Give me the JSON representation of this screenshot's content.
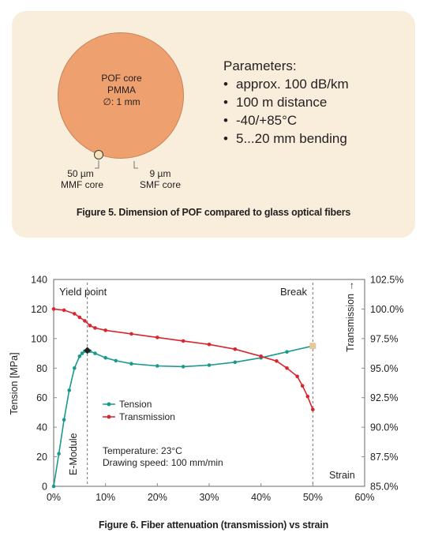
{
  "figure5": {
    "core": {
      "line1": "POF core",
      "line2": "PMMA",
      "line3": "∅: 1 mm"
    },
    "mmf": {
      "line1": "50 µm",
      "line2": "MMF core"
    },
    "smf": {
      "line1": "9 µm",
      "line2": "SMF core"
    },
    "parameters_title": "Parameters:",
    "parameters": [
      "approx. 100 dB/km",
      "100 m distance",
      "-40/+85°C",
      "5...20 mm bending"
    ],
    "caption": "Figure 5. Dimension of POF compared to glass optical fibers",
    "colors": {
      "panel": "#f9eddb",
      "core": "#eea06e",
      "mmf_core": "#f6e4b8"
    }
  },
  "figure6": {
    "caption": "Figure 6. Fiber attenuation (transmission) vs strain",
    "annotations": {
      "yield_point": "Yield point",
      "break": "Break",
      "e_module": "E-Module",
      "strain": "Strain",
      "conditions_line1": "Temperature: 23°C",
      "conditions_line2": "Drawing speed: 100 mm/min"
    }
  },
  "chart_data": {
    "type": "line",
    "title": "",
    "xlabel": "Strain",
    "ylabel": "Tension [MPa]",
    "y2label": "Transmission →",
    "xlim": [
      0,
      60
    ],
    "ylim": [
      0,
      140
    ],
    "y2lim": [
      85,
      102.5
    ],
    "x_ticks": [
      "0%",
      "10%",
      "20%",
      "30%",
      "40%",
      "50%",
      "60%"
    ],
    "y_ticks": [
      "0",
      "20",
      "40",
      "60",
      "80",
      "100",
      "120",
      "140"
    ],
    "y2_ticks": [
      "85.0%",
      "87.5%",
      "90.0%",
      "92.5%",
      "95.0%",
      "97.5%",
      "100.0%",
      "102.5%"
    ],
    "grid": false,
    "legend_position": "center-left",
    "series": [
      {
        "name": "Tension",
        "axis": "left",
        "color": "#1a9a8c",
        "x": [
          0,
          1,
          2,
          3,
          4,
          5,
          5.5,
          6,
          6.5,
          7,
          8,
          10,
          12,
          15,
          20,
          25,
          30,
          35,
          40,
          45,
          50
        ],
        "y": [
          0,
          22,
          45,
          65,
          80,
          88,
          90,
          91.5,
          92,
          91.5,
          90,
          87,
          85,
          83,
          81.5,
          81,
          82,
          84,
          87,
          91,
          95
        ]
      },
      {
        "name": "Transmission",
        "axis": "right",
        "color": "#d7262d",
        "x": [
          0,
          2,
          4,
          5,
          6,
          7,
          8,
          10,
          15,
          20,
          25,
          30,
          35,
          40,
          43,
          45,
          47,
          48,
          49,
          50
        ],
        "y": [
          100.0,
          99.9,
          99.6,
          99.3,
          99.0,
          98.6,
          98.4,
          98.2,
          97.9,
          97.6,
          97.3,
          97.0,
          96.6,
          96.0,
          95.6,
          95.0,
          94.3,
          93.5,
          92.6,
          91.5
        ]
      }
    ],
    "markers": [
      {
        "label": "Yield point",
        "x": 6.5,
        "y": 92,
        "shape": "diamond",
        "color": "#222222"
      },
      {
        "label": "Break",
        "x": 50,
        "y": 95,
        "shape": "square",
        "color": "#e6c79a"
      }
    ],
    "vertical_lines": [
      6.5,
      50
    ]
  }
}
